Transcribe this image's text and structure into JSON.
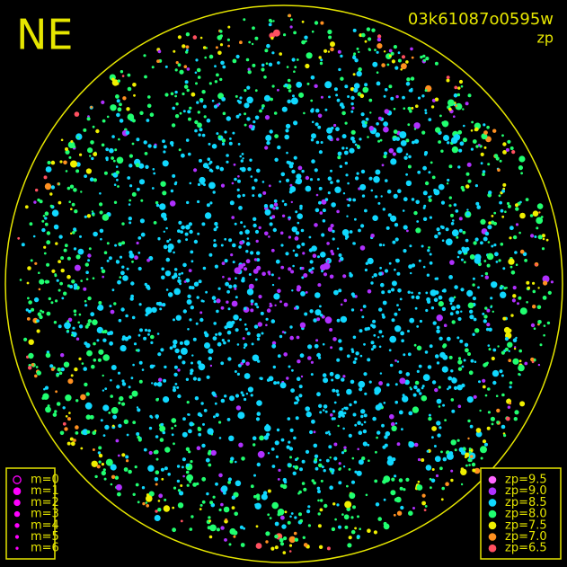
{
  "header": {
    "title": "NE",
    "frame_id": "03k61087o0595w",
    "mode": "zp"
  },
  "legend_magnitude": {
    "items": [
      "m=0",
      "m=1",
      "m=2",
      "m=3",
      "m=4",
      "m=5",
      "m=6"
    ],
    "color": "#ff00ff"
  },
  "legend_zp": {
    "items": [
      {
        "label": "zp=9.5",
        "color": "#ff66ff"
      },
      {
        "label": "zp=9.0",
        "color": "#b030ff"
      },
      {
        "label": "zp=8.5",
        "color": "#10d8ff"
      },
      {
        "label": "zp=8.0",
        "color": "#20ff70"
      },
      {
        "label": "zp=7.5",
        "color": "#f0f000"
      },
      {
        "label": "zp=7.0",
        "color": "#ff9020"
      },
      {
        "label": "zp=6.5",
        "color": "#ff5060"
      }
    ]
  },
  "frame_color": "#e6e600"
}
